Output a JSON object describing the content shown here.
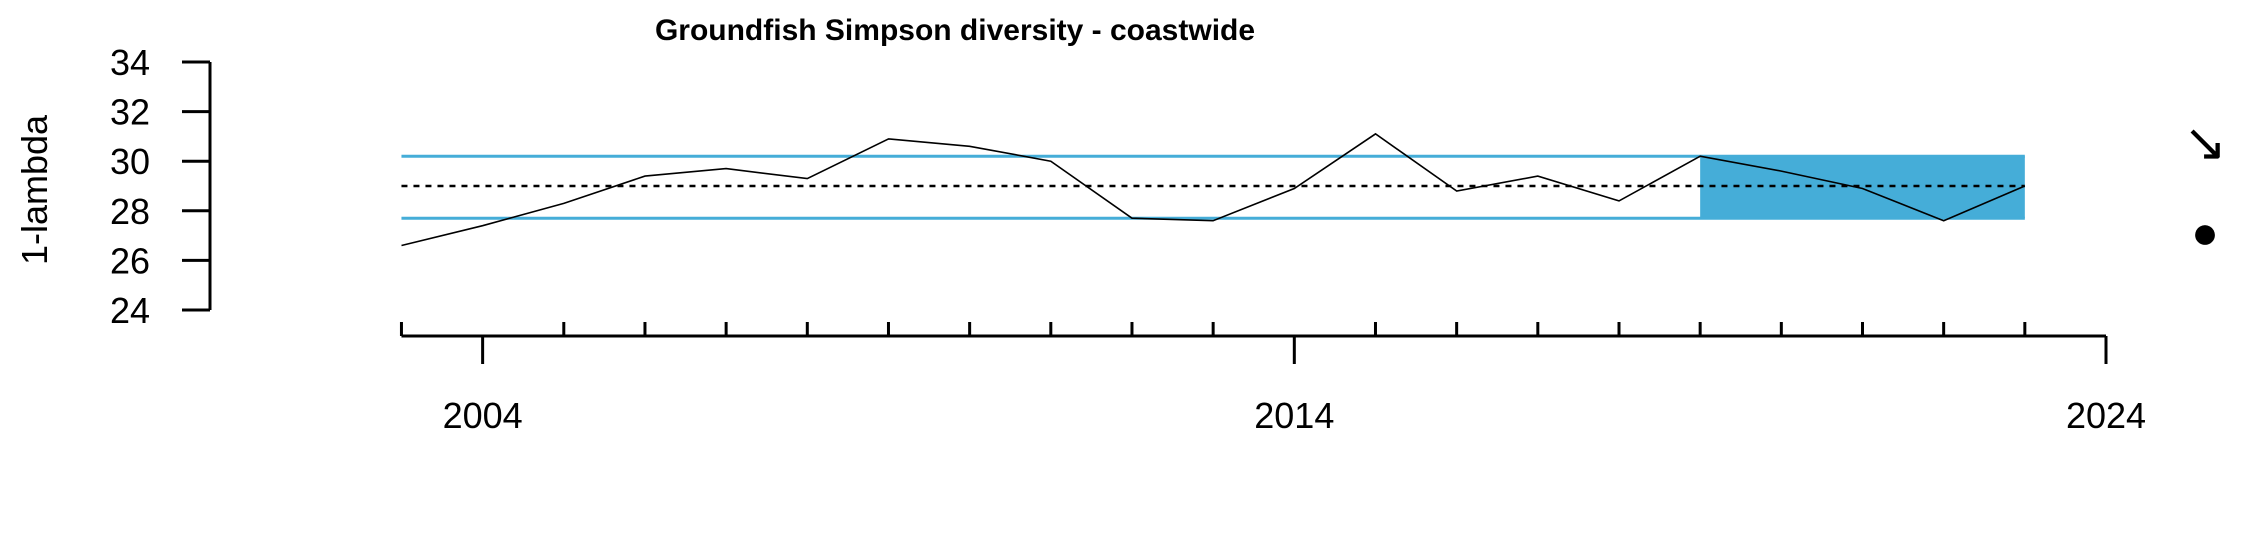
{
  "chart_data": {
    "type": "line",
    "title": "Groundfish Simpson diversity - coastwide",
    "xlabel": "",
    "ylabel": "1-lambda",
    "xlim": [
      2001.75,
      2024
    ],
    "ylim": [
      24,
      34
    ],
    "y_ticks": [
      24,
      26,
      28,
      30,
      32,
      34
    ],
    "x_ticks_major": [
      2004,
      2014,
      2024
    ],
    "x_ticks_minor": [
      2003,
      2005,
      2006,
      2007,
      2008,
      2009,
      2010,
      2011,
      2012,
      2013,
      2015,
      2016,
      2017,
      2018,
      2019,
      2020,
      2021,
      2022,
      2023
    ],
    "grid": false,
    "series": [
      {
        "x": [
          2003,
          2004,
          2005,
          2006,
          2007,
          2008,
          2009,
          2010,
          2011,
          2012,
          2013,
          2014,
          2015,
          2016,
          2017,
          2018,
          2019,
          2020,
          2021,
          2022,
          2023
        ],
        "values": [
          26.6,
          27.4,
          28.3,
          29.4,
          29.7,
          29.3,
          30.9,
          30.6,
          30.0,
          27.7,
          27.6,
          28.9,
          31.1,
          28.8,
          29.4,
          28.4,
          30.2,
          29.6,
          28.9,
          27.6,
          29.0
        ]
      }
    ],
    "mean": 29.0,
    "sd_upper": 30.2,
    "sd_lower": 27.7,
    "shaded_x_range": [
      2019,
      2023
    ],
    "trend_symbol": "↘",
    "mean_symbol": "●",
    "colors": {
      "line": "#000000",
      "sd_lines": "#45add8",
      "shade": "#45add8",
      "mean_line": "#000000"
    }
  }
}
